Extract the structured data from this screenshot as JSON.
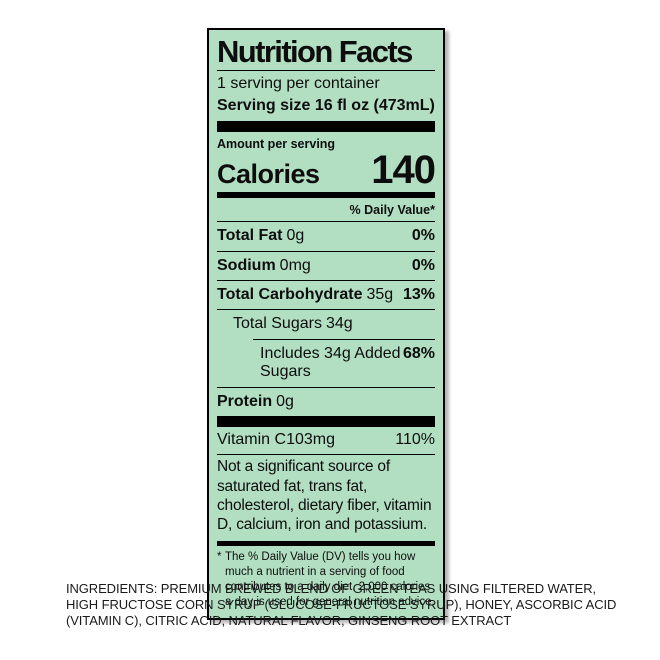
{
  "label": {
    "title": "Nutrition Facts",
    "servings_per_container": "1 serving per container",
    "serving_size_label": "Serving size",
    "serving_size_value": "16 fl oz (473mL)",
    "amount_per_serving": "Amount per serving",
    "calories_label": "Calories",
    "calories_value": "140",
    "daily_value_header": "% Daily Value*",
    "rows": [
      {
        "name": "Total Fat",
        "amount": "0g",
        "pct": "0%"
      },
      {
        "name": "Sodium",
        "amount": "0mg",
        "pct": "0%"
      },
      {
        "name": "Total Carbohydrate",
        "amount": "35g",
        "pct": "13%"
      },
      {
        "name": "Total Sugars",
        "amount": "34g",
        "pct": ""
      },
      {
        "text": "Includes 34g Added Sugars",
        "pct": "68%"
      },
      {
        "name": "Protein",
        "amount": "0g",
        "pct": ""
      },
      {
        "name": "Vitamin C",
        "amount": "103mg",
        "pct": "110%"
      }
    ],
    "not_significant": "Not a significant source of saturated fat, trans fat, cholesterol, dietary fiber, vitamin D, calcium, iron and potassium.",
    "footnote_asterisk": "*",
    "footnote": "The % Daily Value (DV) tells you how much a nutrient in a serving of food contributes to a daily diet. 2,000 calories a day is used for general nutrition advice."
  },
  "ingredients": {
    "lines": [
      "INGREDIENTS: PREMIUM BREWED BLEND OF GREEN TEAS USING FILTERED WATER,",
      "HIGH FRUCTOSE CORN SYRUP (GLUCOSE-FRUCTOSE SYRUP), HONEY, ASCORBIC ACID",
      "(VITAMIN C), CITRIC ACID, NATURAL FLAVOR, GINSENG ROOT EXTRACT"
    ]
  },
  "colors": {
    "label_background": "#b2dfc2",
    "label_border": "#000000",
    "text": "#0d0d0d"
  }
}
